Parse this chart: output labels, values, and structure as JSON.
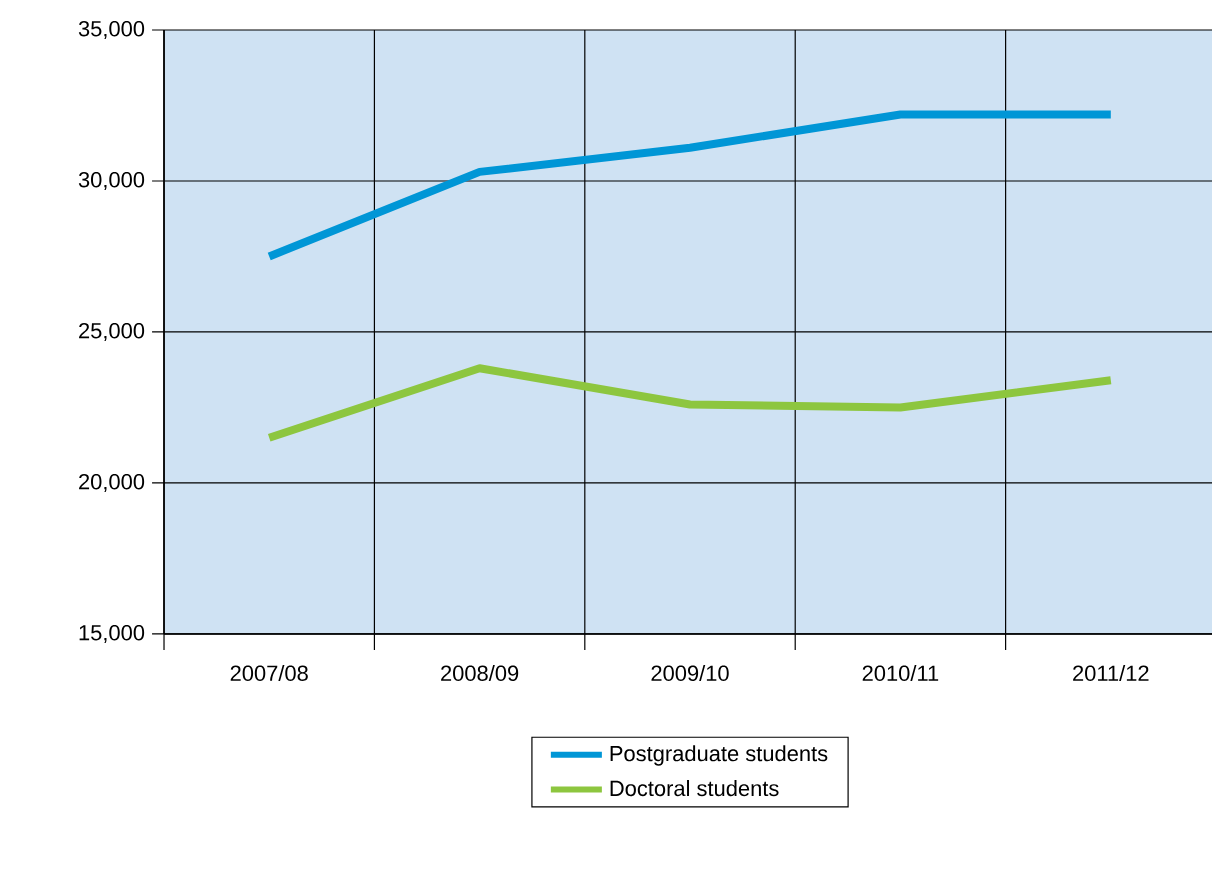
{
  "chart_data": {
    "type": "line",
    "categories": [
      "2007/08",
      "2008/09",
      "2009/10",
      "2010/11",
      "2011/12"
    ],
    "series": [
      {
        "name": "Postgraduate students",
        "color": "#0096d6",
        "values": [
          27500,
          30300,
          31100,
          32200,
          32200
        ]
      },
      {
        "name": "Doctoral students",
        "color": "#8dc63f",
        "values": [
          21500,
          23800,
          22600,
          22500,
          23400
        ]
      }
    ],
    "ylim": [
      15000,
      35000
    ],
    "yticks": [
      {
        "value": 15000,
        "label": "15,000"
      },
      {
        "value": 20000,
        "label": "20,000"
      },
      {
        "value": 25000,
        "label": "25,000"
      },
      {
        "value": 30000,
        "label": "30,000"
      },
      {
        "value": 35000,
        "label": "35,000"
      }
    ],
    "grid": true,
    "legend": "bottom",
    "marker": "none",
    "line_style": "solid"
  }
}
